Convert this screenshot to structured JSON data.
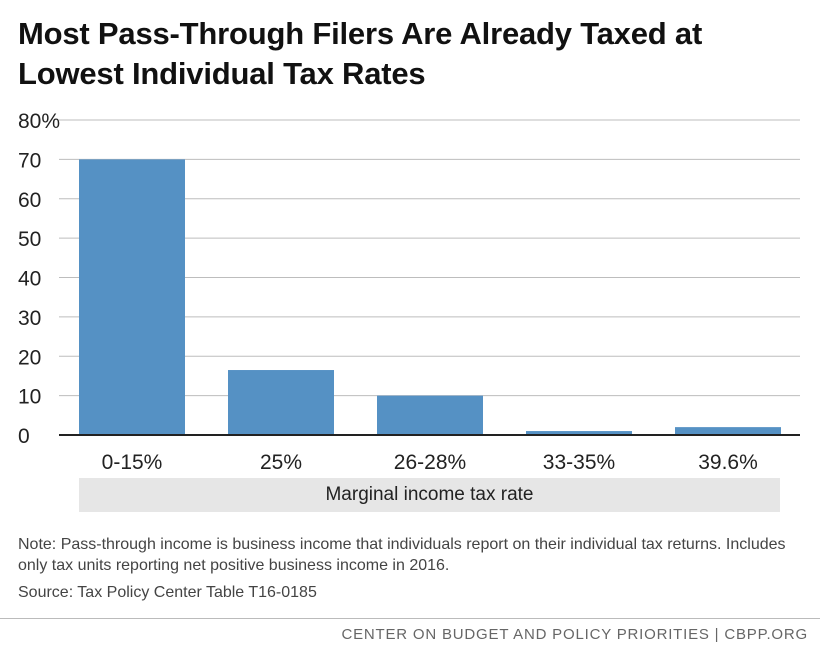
{
  "title": "Most Pass-Through Filers Are Already Taxed at Lowest Individual Tax Rates",
  "chart_data": {
    "type": "bar",
    "title": "Most Pass-Through Filers Are Already Taxed at Lowest Individual Tax Rates",
    "xlabel": "Marginal income tax rate",
    "ylabel": "",
    "categories": [
      "0-15%",
      "25%",
      "26-28%",
      "33-35%",
      "39.6%"
    ],
    "values": [
      70,
      16.5,
      10,
      1,
      2
    ],
    "ylim": [
      0,
      80
    ],
    "yticks": [
      0,
      10,
      20,
      30,
      40,
      50,
      60,
      70,
      80
    ],
    "ytick_labels": [
      "0",
      "10",
      "20",
      "30",
      "40",
      "50",
      "60",
      "70",
      "80%"
    ],
    "grid": true,
    "bar_color": "#5591c4"
  },
  "note": "Note: Pass-through income is business income that individuals report on their individual tax returns. Includes only tax units reporting net positive business income in 2016.",
  "source": "Source: Tax Policy Center Table T16-0185",
  "footer": "CENTER ON BUDGET AND POLICY PRIORITIES | CBPP.ORG"
}
